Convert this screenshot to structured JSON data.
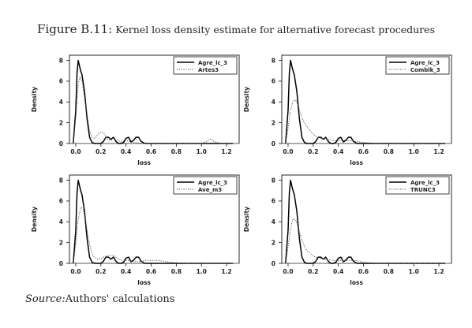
{
  "caption": {
    "figure_label": "Figure B.11:",
    "text": "Kernel loss density estimate for alternative forecast procedures"
  },
  "source": {
    "label": "Source:",
    "text": "Authors' calculations"
  },
  "chart_data": [
    {
      "type": "line",
      "xlabel": "loss",
      "ylabel": "Density",
      "xlim": [
        -0.05,
        1.3
      ],
      "ylim": [
        0,
        8.5
      ],
      "xticks": [
        "0.0",
        "0.2",
        "0.4",
        "0.6",
        "0.8",
        "1.0",
        "1.2"
      ],
      "yticks": [
        "0",
        "2",
        "4",
        "6",
        "8"
      ],
      "legend_position": "top-right",
      "series": [
        {
          "name": "Agre_lc_3",
          "style": "solid",
          "x": [
            -0.02,
            0.0,
            0.01,
            0.02,
            0.035,
            0.05,
            0.07,
            0.09,
            0.11,
            0.13,
            0.15,
            0.17,
            0.2,
            0.22,
            0.24,
            0.26,
            0.28,
            0.3,
            0.32,
            0.34,
            0.36,
            0.38,
            0.4,
            0.42,
            0.44,
            0.46,
            0.48,
            0.5,
            0.52,
            0.55,
            0.6,
            0.8,
            1.0,
            1.25
          ],
          "y": [
            0,
            3.2,
            6.8,
            8.0,
            7.2,
            6.6,
            5.0,
            2.4,
            0.6,
            0.1,
            0.0,
            0.0,
            0.0,
            0.2,
            0.6,
            0.6,
            0.4,
            0.6,
            0.2,
            0.0,
            0.0,
            0.1,
            0.5,
            0.6,
            0.15,
            0.3,
            0.6,
            0.6,
            0.2,
            0.0,
            0.0,
            0.0,
            0.0,
            0.0
          ]
        },
        {
          "name": "Artes3",
          "style": "dotted",
          "x": [
            -0.02,
            0.0,
            0.02,
            0.035,
            0.05,
            0.07,
            0.09,
            0.11,
            0.13,
            0.15,
            0.17,
            0.19,
            0.21,
            0.23,
            0.25,
            0.28,
            0.3,
            0.33,
            0.36,
            0.4,
            0.45,
            0.5,
            0.55,
            0.6,
            0.8,
            1.0,
            1.04,
            1.07,
            1.1,
            1.15,
            1.25
          ],
          "y": [
            0,
            2.5,
            5.8,
            6.4,
            6.0,
            4.4,
            2.8,
            1.2,
            0.6,
            0.5,
            0.8,
            1.0,
            1.1,
            0.9,
            0.4,
            0.3,
            0.5,
            0.3,
            0.15,
            0.3,
            0.1,
            0.05,
            0.0,
            0.0,
            0.0,
            0.0,
            0.2,
            0.45,
            0.2,
            0.0,
            0.0
          ]
        }
      ]
    },
    {
      "type": "line",
      "xlabel": "loss",
      "ylabel": "Density",
      "xlim": [
        -0.05,
        1.3
      ],
      "ylim": [
        0,
        8.5
      ],
      "xticks": [
        "0.0",
        "0.2",
        "0.4",
        "0.6",
        "0.8",
        "1.0",
        "1.2"
      ],
      "yticks": [
        "0",
        "2",
        "4",
        "6",
        "8"
      ],
      "legend_position": "top-right",
      "series": [
        {
          "name": "Agre_lc_3",
          "style": "solid",
          "x": [
            -0.02,
            0.0,
            0.01,
            0.02,
            0.035,
            0.05,
            0.07,
            0.09,
            0.11,
            0.13,
            0.15,
            0.17,
            0.2,
            0.22,
            0.24,
            0.26,
            0.28,
            0.3,
            0.32,
            0.34,
            0.36,
            0.38,
            0.4,
            0.42,
            0.44,
            0.46,
            0.48,
            0.5,
            0.52,
            0.55,
            0.6,
            0.8,
            1.0,
            1.25
          ],
          "y": [
            0,
            3.2,
            6.8,
            8.0,
            7.2,
            6.6,
            5.0,
            2.4,
            0.6,
            0.1,
            0.0,
            0.0,
            0.0,
            0.2,
            0.6,
            0.6,
            0.4,
            0.6,
            0.2,
            0.0,
            0.0,
            0.1,
            0.5,
            0.6,
            0.15,
            0.3,
            0.6,
            0.6,
            0.2,
            0.0,
            0.0,
            0.0,
            0.0,
            0.0
          ]
        },
        {
          "name": "Comblk_3",
          "style": "dotted",
          "x": [
            -0.02,
            0.0,
            0.02,
            0.04,
            0.06,
            0.08,
            0.1,
            0.12,
            0.14,
            0.16,
            0.18,
            0.2,
            0.22,
            0.25,
            0.28,
            0.3,
            0.35,
            0.4,
            0.45,
            0.5,
            0.55,
            0.6,
            0.65,
            0.7,
            0.8,
            1.0,
            1.25
          ],
          "y": [
            0,
            1.5,
            3.2,
            4.1,
            4.2,
            3.7,
            2.9,
            2.2,
            1.8,
            1.5,
            1.2,
            0.9,
            0.7,
            0.55,
            0.5,
            0.4,
            0.3,
            0.25,
            0.3,
            0.25,
            0.2,
            0.1,
            0.05,
            0.0,
            0.0,
            0.0,
            0.0
          ]
        }
      ]
    },
    {
      "type": "line",
      "xlabel": "loss",
      "ylabel": "Density",
      "xlim": [
        -0.05,
        1.3
      ],
      "ylim": [
        0,
        8.5
      ],
      "xticks": [
        "0.0",
        "0.2",
        "0.4",
        "0.6",
        "0.8",
        "1.0",
        "1.2"
      ],
      "yticks": [
        "0",
        "2",
        "4",
        "6",
        "8"
      ],
      "legend_position": "top-right",
      "series": [
        {
          "name": "Agre_lc_3",
          "style": "solid",
          "x": [
            -0.02,
            0.0,
            0.01,
            0.02,
            0.035,
            0.05,
            0.07,
            0.09,
            0.11,
            0.13,
            0.15,
            0.17,
            0.2,
            0.22,
            0.24,
            0.26,
            0.28,
            0.3,
            0.32,
            0.34,
            0.36,
            0.38,
            0.4,
            0.42,
            0.44,
            0.46,
            0.48,
            0.5,
            0.52,
            0.55,
            0.6,
            0.8,
            1.0,
            1.25
          ],
          "y": [
            0,
            3.2,
            6.8,
            8.0,
            7.2,
            6.6,
            5.0,
            2.4,
            0.6,
            0.1,
            0.0,
            0.0,
            0.0,
            0.2,
            0.6,
            0.6,
            0.4,
            0.6,
            0.2,
            0.0,
            0.0,
            0.1,
            0.5,
            0.6,
            0.15,
            0.3,
            0.6,
            0.6,
            0.2,
            0.0,
            0.0,
            0.0,
            0.0,
            0.0
          ]
        },
        {
          "name": "Ave_m3",
          "style": "dotted",
          "x": [
            -0.02,
            0.0,
            0.02,
            0.04,
            0.06,
            0.08,
            0.1,
            0.12,
            0.14,
            0.16,
            0.18,
            0.2,
            0.22,
            0.24,
            0.26,
            0.28,
            0.3,
            0.33,
            0.36,
            0.4,
            0.45,
            0.5,
            0.55,
            0.6,
            0.65,
            0.7,
            0.75,
            0.8,
            0.9,
            1.0,
            1.25
          ],
          "y": [
            0,
            1.8,
            4.2,
            5.4,
            5.2,
            4.0,
            2.4,
            1.3,
            0.7,
            0.5,
            0.4,
            0.45,
            0.6,
            0.7,
            0.75,
            0.8,
            0.75,
            0.5,
            0.3,
            0.3,
            0.2,
            0.15,
            0.3,
            0.25,
            0.3,
            0.2,
            0.1,
            0.05,
            0.0,
            0.0,
            0.0
          ]
        }
      ]
    },
    {
      "type": "line",
      "xlabel": "loss",
      "ylabel": "Density",
      "xlim": [
        -0.05,
        1.3
      ],
      "ylim": [
        0,
        8.5
      ],
      "xticks": [
        "0.0",
        "0.2",
        "0.4",
        "0.6",
        "0.8",
        "1.0",
        "1.2"
      ],
      "yticks": [
        "0",
        "2",
        "4",
        "6",
        "8"
      ],
      "legend_position": "top-right",
      "series": [
        {
          "name": "Agre_lc_3",
          "style": "solid",
          "x": [
            -0.02,
            0.0,
            0.01,
            0.02,
            0.035,
            0.05,
            0.07,
            0.09,
            0.11,
            0.13,
            0.15,
            0.17,
            0.2,
            0.22,
            0.24,
            0.26,
            0.28,
            0.3,
            0.32,
            0.34,
            0.36,
            0.38,
            0.4,
            0.42,
            0.44,
            0.46,
            0.48,
            0.5,
            0.52,
            0.55,
            0.6,
            0.8,
            1.0,
            1.25
          ],
          "y": [
            0,
            3.2,
            6.8,
            8.0,
            7.2,
            6.6,
            5.0,
            2.4,
            0.6,
            0.1,
            0.0,
            0.0,
            0.0,
            0.2,
            0.6,
            0.6,
            0.4,
            0.6,
            0.2,
            0.0,
            0.0,
            0.1,
            0.5,
            0.6,
            0.15,
            0.3,
            0.6,
            0.6,
            0.2,
            0.0,
            0.0,
            0.0,
            0.0,
            0.0
          ]
        },
        {
          "name": "TRUNC3",
          "style": "dotted",
          "x": [
            -0.02,
            0.0,
            0.02,
            0.04,
            0.06,
            0.08,
            0.1,
            0.12,
            0.14,
            0.16,
            0.18,
            0.2,
            0.22,
            0.25,
            0.28,
            0.3,
            0.35,
            0.4,
            0.45,
            0.5,
            0.55,
            0.6,
            0.65,
            0.7,
            0.8,
            1.0,
            1.25
          ],
          "y": [
            0,
            1.6,
            3.4,
            4.3,
            4.2,
            3.5,
            2.6,
            1.9,
            1.4,
            1.1,
            0.9,
            0.7,
            0.6,
            0.5,
            0.45,
            0.35,
            0.3,
            0.25,
            0.3,
            0.3,
            0.25,
            0.1,
            0.05,
            0.0,
            0.0,
            0.0,
            0.0
          ]
        }
      ]
    }
  ]
}
